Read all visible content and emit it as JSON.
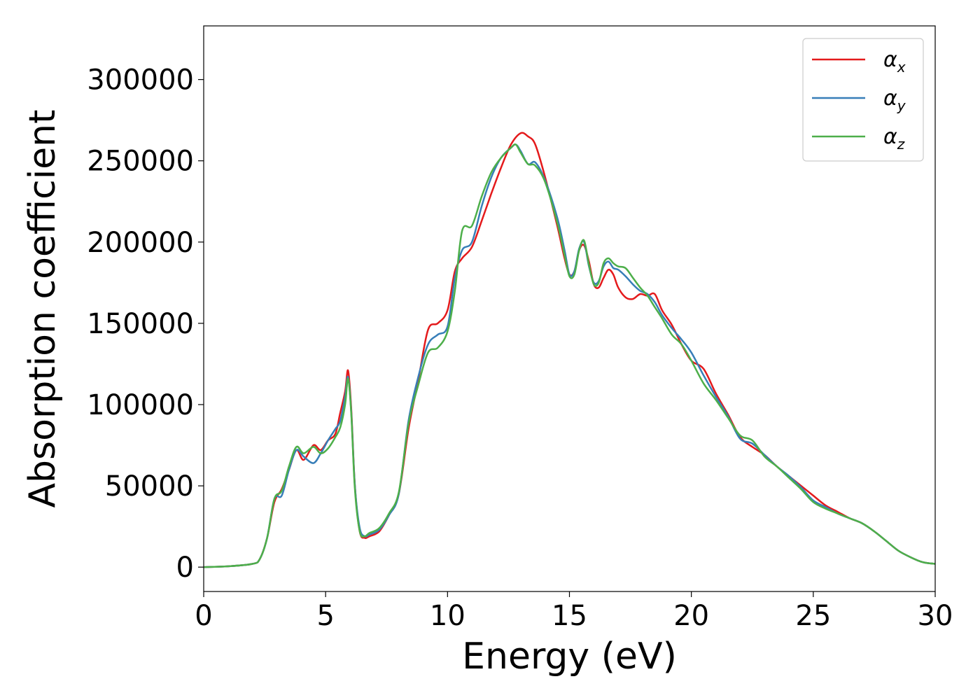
{
  "chart_data": {
    "type": "line",
    "title": "",
    "xlabel": "Energy (eV)",
    "ylabel": "Absorption coefficient",
    "xlim": [
      0,
      30
    ],
    "ylim": [
      -15000,
      333000
    ],
    "xticks": [
      0,
      5,
      10,
      15,
      20,
      25,
      30
    ],
    "xtick_labels": [
      "0",
      "5",
      "10",
      "15",
      "20",
      "25",
      "30"
    ],
    "yticks": [
      0,
      50000,
      100000,
      150000,
      200000,
      250000,
      300000
    ],
    "ytick_labels": [
      "0",
      "50000",
      "100000",
      "150000",
      "200000",
      "250000",
      "300000"
    ],
    "grid": false,
    "legend_position": "top-right",
    "series": [
      {
        "name": "αx",
        "symbol": "α",
        "subscript": "x",
        "color": "#e41a1c",
        "x": [
          0,
          1,
          2,
          2.3,
          2.6,
          2.9,
          3.2,
          3.5,
          3.8,
          4.1,
          4.5,
          4.8,
          5.1,
          5.4,
          5.6,
          5.8,
          5.92,
          6.05,
          6.2,
          6.4,
          6.6,
          6.8,
          7.2,
          7.6,
          8.0,
          8.4,
          8.8,
          9.2,
          9.6,
          10.0,
          10.3,
          10.6,
          11.0,
          11.4,
          11.8,
          12.2,
          12.6,
          13.0,
          13.3,
          13.6,
          14.0,
          14.5,
          14.8,
          15.0,
          15.2,
          15.4,
          15.6,
          15.8,
          16.0,
          16.2,
          16.4,
          16.6,
          16.8,
          17.0,
          17.3,
          17.6,
          17.9,
          18.2,
          18.5,
          18.8,
          19.2,
          19.6,
          20.0,
          20.5,
          21.0,
          21.5,
          22.0,
          22.5,
          23.0,
          23.5,
          24.0,
          24.5,
          25.0,
          25.5,
          26.0,
          26.5,
          27.0,
          27.5,
          28.0,
          28.5,
          29.0,
          29.5,
          30.0
        ],
        "y": [
          0,
          500,
          2000,
          5000,
          18000,
          40000,
          48000,
          60000,
          72000,
          66000,
          75000,
          72000,
          78000,
          82000,
          95000,
          108000,
          121000,
          98000,
          50000,
          22000,
          18000,
          19000,
          22000,
          32000,
          45000,
          85000,
          115000,
          146000,
          150000,
          158000,
          182000,
          190000,
          197000,
          213000,
          230000,
          246000,
          260000,
          267000,
          265000,
          260000,
          240000,
          210000,
          190000,
          180000,
          182000,
          195000,
          198000,
          188000,
          174000,
          172000,
          178000,
          183000,
          180000,
          172000,
          166000,
          165000,
          168000,
          167000,
          168000,
          158000,
          149000,
          137000,
          127000,
          122000,
          107000,
          94000,
          80000,
          74000,
          69000,
          62000,
          56000,
          50000,
          44000,
          38000,
          34000,
          30000,
          27000,
          22000,
          16000,
          10000,
          6000,
          3000,
          2000
        ]
      },
      {
        "name": "αy",
        "symbol": "α",
        "subscript": "y",
        "color": "#377eb8",
        "x": [
          0,
          1,
          2,
          2.3,
          2.6,
          2.9,
          3.2,
          3.5,
          3.8,
          4.1,
          4.5,
          4.8,
          5.1,
          5.4,
          5.6,
          5.8,
          5.92,
          6.05,
          6.2,
          6.4,
          6.6,
          6.8,
          7.2,
          7.6,
          8.0,
          8.4,
          8.8,
          9.2,
          9.6,
          10.0,
          10.3,
          10.6,
          11.0,
          11.4,
          11.8,
          12.2,
          12.6,
          12.8,
          13.0,
          13.3,
          13.6,
          14.0,
          14.5,
          14.8,
          15.0,
          15.2,
          15.4,
          15.6,
          15.8,
          16.0,
          16.2,
          16.4,
          16.6,
          16.8,
          17.0,
          17.3,
          17.6,
          17.9,
          18.2,
          18.5,
          18.8,
          19.2,
          19.6,
          20.0,
          20.5,
          21.0,
          21.5,
          22.0,
          22.5,
          23.0,
          23.5,
          24.0,
          24.5,
          25.0,
          25.5,
          26.0,
          26.5,
          27.0,
          27.5,
          28.0,
          28.5,
          29.0,
          29.5,
          30.0
        ],
        "y": [
          0,
          500,
          2000,
          5000,
          18000,
          42000,
          44000,
          60000,
          72000,
          68000,
          64000,
          70000,
          78000,
          85000,
          90000,
          105000,
          117000,
          96000,
          50000,
          24000,
          19000,
          20000,
          23000,
          32000,
          45000,
          90000,
          117000,
          137000,
          143000,
          148000,
          178000,
          195000,
          200000,
          222000,
          240000,
          252000,
          258000,
          260000,
          256000,
          248000,
          249000,
          238000,
          215000,
          195000,
          180000,
          182000,
          196000,
          200000,
          185000,
          175000,
          176000,
          185000,
          188000,
          184000,
          183000,
          179000,
          174000,
          170000,
          168000,
          163000,
          155000,
          147000,
          140000,
          132000,
          118000,
          105000,
          93000,
          79000,
          76000,
          69000,
          62000,
          56000,
          49000,
          41000,
          37000,
          33000,
          30000,
          27000,
          22000,
          16000,
          10000,
          6000,
          3000,
          2000
        ]
      },
      {
        "name": "αz",
        "symbol": "α",
        "subscript": "z",
        "color": "#4daf4a",
        "x": [
          0,
          1,
          2,
          2.3,
          2.6,
          2.9,
          3.2,
          3.5,
          3.8,
          4.1,
          4.5,
          4.8,
          5.1,
          5.4,
          5.6,
          5.8,
          5.92,
          6.05,
          6.2,
          6.4,
          6.6,
          6.8,
          7.2,
          7.6,
          8.0,
          8.4,
          8.8,
          9.2,
          9.6,
          10.0,
          10.3,
          10.6,
          11.0,
          11.4,
          11.8,
          12.2,
          12.6,
          12.8,
          13.0,
          13.3,
          13.6,
          14.0,
          14.5,
          14.8,
          15.0,
          15.2,
          15.4,
          15.6,
          15.8,
          16.0,
          16.2,
          16.4,
          16.6,
          16.8,
          17.0,
          17.3,
          17.6,
          17.9,
          18.2,
          18.5,
          18.8,
          19.2,
          19.6,
          20.0,
          20.5,
          21.0,
          21.5,
          22.0,
          22.5,
          23.0,
          23.5,
          24.0,
          24.5,
          25.0,
          25.5,
          26.0,
          26.5,
          27.0,
          27.5,
          28.0,
          28.5,
          29.0,
          29.5,
          30.0
        ],
        "y": [
          0,
          500,
          2000,
          5000,
          18000,
          42000,
          47000,
          62000,
          74000,
          70000,
          74000,
          70000,
          73000,
          80000,
          86000,
          100000,
          116000,
          95000,
          48000,
          22000,
          19000,
          21000,
          24000,
          33000,
          46000,
          88000,
          112000,
          132000,
          135000,
          145000,
          170000,
          207000,
          210000,
          228000,
          243000,
          252000,
          258000,
          260000,
          255000,
          248000,
          247000,
          237000,
          212000,
          192000,
          179000,
          180000,
          195000,
          201000,
          186000,
          174000,
          175000,
          187000,
          190000,
          187000,
          185000,
          184000,
          178000,
          172000,
          167000,
          160000,
          153000,
          143000,
          137000,
          127000,
          113000,
          103000,
          92000,
          81000,
          78000,
          68000,
          62000,
          55000,
          48000,
          40000,
          36000,
          33000,
          30000,
          27000,
          22000,
          16000,
          10000,
          6000,
          3000,
          2000
        ]
      }
    ]
  }
}
